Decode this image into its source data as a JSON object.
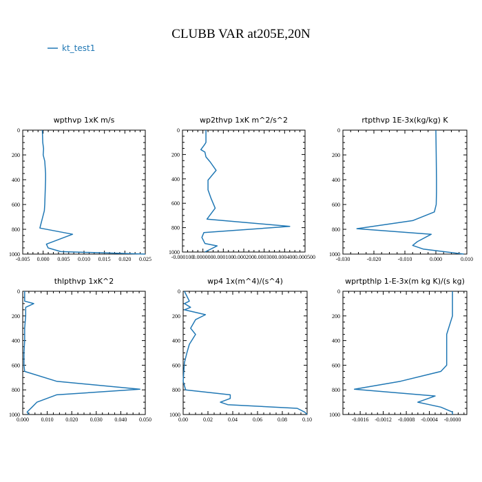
{
  "figure": {
    "title": "CLUBB VAR at205E,20N",
    "legend": {
      "label": "kt_test1",
      "color": "#1f77b4"
    }
  },
  "chart_data": [
    {
      "type": "line",
      "title": "wpthvp   1xK m/s",
      "xlim": [
        -0.005,
        0.025
      ],
      "ylim": [
        1000,
        0
      ],
      "xticks": [
        -0.005,
        0.0,
        0.005,
        0.01,
        0.015,
        0.02,
        0.025
      ],
      "xtick_labels": [
        "-0.005",
        "0.000",
        "0.005",
        "0.010",
        "0.015",
        "0.020",
        "0.025"
      ],
      "yticks": [
        0,
        200,
        400,
        600,
        800,
        1000
      ],
      "ytick_labels": [
        "0",
        "200",
        "400",
        "600",
        "800",
        "1000"
      ],
      "series": [
        {
          "name": "kt_test1",
          "x": [
            -0.0002,
            -0.0001,
            0.0001,
            0.0,
            0.0004,
            0.0006,
            0.0006,
            0.0005,
            0.0004,
            0.0003,
            -0.0008,
            0.0072,
            0.0008,
            0.0012,
            0.0043,
            0.025
          ],
          "y": [
            0,
            100,
            150,
            200,
            250,
            350,
            400,
            500,
            600,
            650,
            790,
            840,
            920,
            950,
            980,
            1000
          ]
        }
      ]
    },
    {
      "type": "line",
      "title": "wp2thvp   1xK m^2/s^2",
      "xlim": [
        -0.0001,
        0.0005
      ],
      "ylim": [
        1000,
        0
      ],
      "xticks": [
        -0.0001,
        0.0,
        0.0001,
        0.0002,
        0.0003,
        0.0004,
        0.0005
      ],
      "xtick_labels": [
        "-0.000100",
        "0.000000",
        "0.000100",
        "0.000200",
        "0.000300",
        "0.000400",
        "0.000500"
      ],
      "yticks": [
        0,
        200,
        400,
        600,
        800,
        1000
      ],
      "ytick_labels": [
        "0",
        "200",
        "400",
        "600",
        "800",
        "1000"
      ],
      "series": [
        {
          "name": "kt_test1",
          "x": [
            1.5e-05,
            1.5e-05,
            8e-06,
            -1e-05,
            1e-05,
            1.5e-05,
            3.5e-05,
            6.5e-05,
            2.5e-05,
            2.5e-05,
            4e-05,
            6e-05,
            2e-05,
            0.000425,
            5e-06,
            -5e-06,
            1e-05,
            7e-05,
            1e-05
          ],
          "y": [
            0,
            100,
            120,
            160,
            180,
            220,
            260,
            330,
            410,
            490,
            560,
            640,
            730,
            790,
            840,
            880,
            930,
            950,
            1000
          ]
        }
      ]
    },
    {
      "type": "line",
      "title": "rtpthvp   1E-3x(kg/kg) K",
      "xlim": [
        -0.03,
        0.01
      ],
      "ylim": [
        1000,
        0
      ],
      "xticks": [
        -0.03,
        -0.02,
        -0.01,
        0.0,
        0.01
      ],
      "xtick_labels": [
        "-0.030",
        "-0.020",
        "-0.010",
        "0.000",
        "0.010"
      ],
      "yticks": [
        0,
        200,
        400,
        600,
        800,
        1000
      ],
      "ytick_labels": [
        "0",
        "200",
        "400",
        "600",
        "800",
        "1000"
      ],
      "series": [
        {
          "name": "kt_test1",
          "x": [
            0.0,
            0.0001,
            0.0002,
            0.0002,
            0.0001,
            -0.0005,
            -0.0075,
            -0.0255,
            -0.0015,
            -0.006,
            -0.0075,
            -0.004,
            0.009
          ],
          "y": [
            0,
            200,
            400,
            500,
            600,
            660,
            730,
            795,
            840,
            900,
            930,
            960,
            1000
          ]
        }
      ]
    },
    {
      "type": "line",
      "title": "thlpthvp   1xK^2",
      "xlim": [
        0.0,
        0.05
      ],
      "ylim": [
        1000,
        0
      ],
      "xticks": [
        0.0,
        0.01,
        0.02,
        0.03,
        0.04,
        0.05
      ],
      "xtick_labels": [
        "0.000",
        "0.010",
        "0.020",
        "0.030",
        "0.040",
        "0.050"
      ],
      "yticks": [
        0,
        200,
        400,
        600,
        800,
        1000
      ],
      "ytick_labels": [
        "0",
        "200",
        "400",
        "600",
        "800",
        "1000"
      ],
      "series": [
        {
          "name": "kt_test1",
          "x": [
            0.0008,
            0.0008,
            0.0045,
            0.0012,
            0.0012,
            0.0008,
            0.0008,
            0.0005,
            0.0005,
            0.0008,
            0.0138,
            0.0478,
            0.0138,
            0.0058,
            0.0038,
            0.0018,
            0.0025
          ],
          "y": [
            0,
            80,
            100,
            130,
            200,
            300,
            400,
            500,
            600,
            650,
            730,
            795,
            840,
            900,
            940,
            980,
            1000
          ]
        }
      ]
    },
    {
      "type": "line",
      "title": "wp4   1x(m^4)/(s^4)",
      "xlim": [
        0.0,
        0.1
      ],
      "ylim": [
        1000,
        0
      ],
      "xticks": [
        0.0,
        0.02,
        0.04,
        0.06,
        0.08,
        0.1
      ],
      "xtick_labels": [
        "0.00",
        "0.02",
        "0.04",
        "0.06",
        "0.08",
        "0.10"
      ],
      "yticks": [
        0,
        200,
        400,
        600,
        800,
        1000
      ],
      "ytick_labels": [
        "0",
        "200",
        "400",
        "600",
        "800",
        "1000"
      ],
      "series": [
        {
          "name": "kt_test1",
          "x": [
            0.001,
            0.005,
            0.001,
            0.006,
            0.001,
            0.018,
            0.01,
            0.006,
            0.01,
            0.005,
            0.003,
            0.001,
            0.0,
            0.002,
            0.038,
            0.038,
            0.03,
            0.036,
            0.092,
            0.098,
            0.1
          ],
          "y": [
            0,
            80,
            100,
            130,
            150,
            190,
            230,
            300,
            350,
            430,
            500,
            580,
            730,
            800,
            840,
            870,
            900,
            920,
            950,
            980,
            1000
          ]
        }
      ]
    },
    {
      "type": "line",
      "title": "wprtpthlp   1-E-3x(m kg K)/(s kg)",
      "xlim": [
        -0.0019,
        0.00025
      ],
      "ylim": [
        1000,
        0
      ],
      "xticks": [
        -0.0016,
        -0.0012,
        -0.0008,
        -0.0004,
        0.0
      ],
      "xtick_labels": [
        "-0.0016",
        "-0.0012",
        "-0.0008",
        "-0.0004",
        "-0.0000"
      ],
      "yticks": [
        0,
        200,
        400,
        600,
        800,
        1000
      ],
      "ytick_labels": [
        "0",
        "200",
        "400",
        "600",
        "800",
        "1000"
      ],
      "series": [
        {
          "name": "kt_test1",
          "x": [
            0.0,
            0.0,
            -0.0001,
            -0.0001,
            -0.0001,
            -0.0001,
            -0.0002,
            -0.0009,
            -0.0017,
            -0.0003,
            -0.0006,
            -0.0004,
            -0.0002,
            0.0,
            0.0
          ],
          "y": [
            0,
            200,
            350,
            400,
            500,
            600,
            650,
            730,
            795,
            850,
            900,
            920,
            940,
            980,
            1000
          ]
        }
      ]
    }
  ]
}
